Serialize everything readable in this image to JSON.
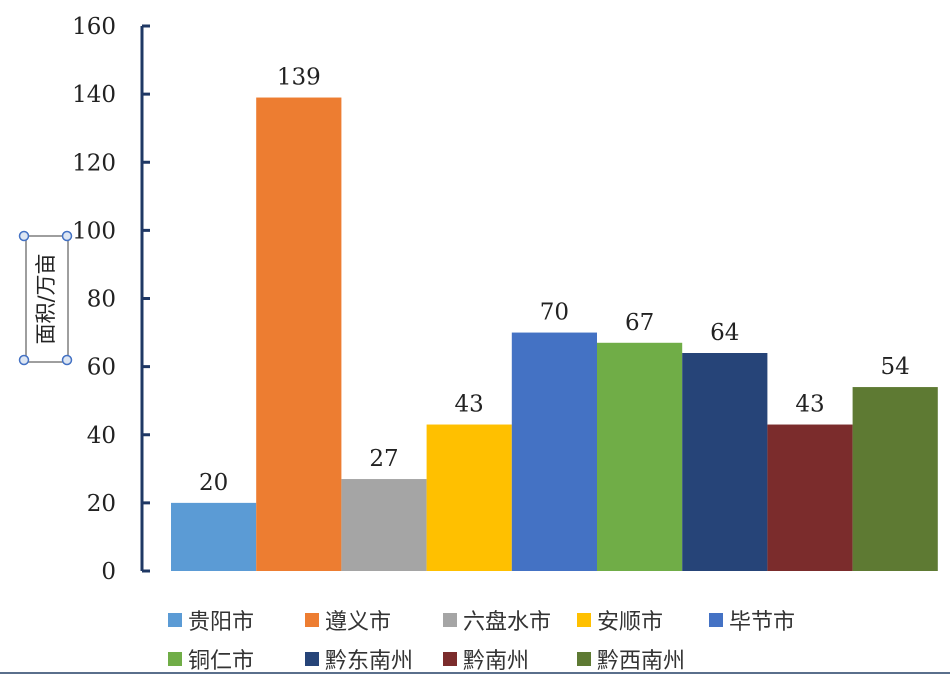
{
  "chart_data": {
    "type": "bar",
    "title": "",
    "xlabel": "",
    "ylabel": "面积/万亩",
    "ylim": [
      0,
      160
    ],
    "yticks": [
      0,
      20,
      40,
      60,
      80,
      100,
      120,
      140,
      160
    ],
    "grid": false,
    "legend_position": "bottom",
    "categories": [
      "贵阳市",
      "遵义市",
      "六盘水市",
      "安顺市",
      "毕节市",
      "铜仁市",
      "黔东南州",
      "黔南州",
      "黔西南州"
    ],
    "values": [
      20,
      139,
      27,
      43,
      70,
      67,
      64,
      43,
      54
    ],
    "data_labels": [
      "20",
      "139",
      "27",
      "43",
      "70",
      "67",
      "64",
      "43",
      "54"
    ],
    "colors": [
      "#5B9BD5",
      "#ED7D31",
      "#A5A5A5",
      "#FFC000",
      "#4472C4",
      "#70AD47",
      "#264478",
      "#7B2C2C",
      "#5E7A33"
    ],
    "axis_color": "#1F3864"
  }
}
